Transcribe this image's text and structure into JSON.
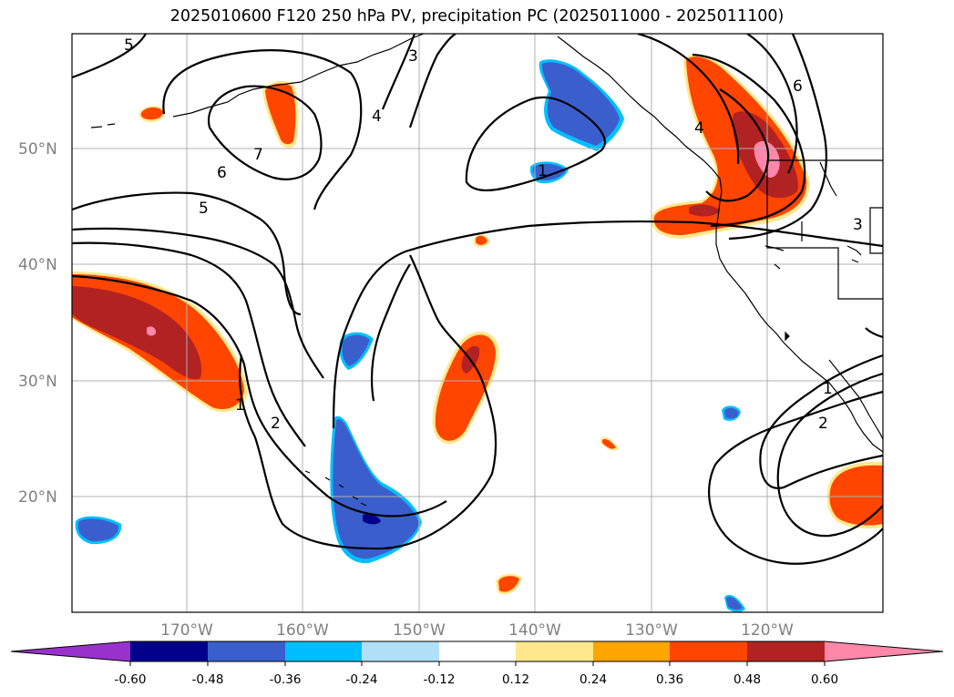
{
  "title": "2025010600 F120 250 hPa PV, precipitation PC (2025011000 - 2025011100)",
  "latitude_labels": [
    "50°N",
    "40°N",
    "30°N",
    "20°N"
  ],
  "longitude_labels": [
    "170°W",
    "160°W",
    "150°W",
    "140°W",
    "130°W",
    "120°W"
  ],
  "pv_contour_labels": [
    "5",
    "3",
    "4",
    "7",
    "6",
    "5",
    "1",
    "2",
    "1",
    "6",
    "4",
    "3",
    "1",
    "2"
  ],
  "colorbar": {
    "tick_labels": [
      "-0.60",
      "-0.48",
      "-0.36",
      "-0.24",
      "-0.12",
      "0.12",
      "0.24",
      "0.36",
      "0.48",
      "0.60"
    ],
    "colors": {
      "extend_min": "#9932cc",
      "lt_-0.48": "#00008b",
      "lt_-0.36": "#3a5fcd",
      "lt_-0.24": "#00bfff",
      "lt_-0.12": "#b0e0f8",
      "neutral": "#ffffff",
      "lt_0.24": "#ffe88c",
      "lt_0.36": "#ffa500",
      "lt_0.48": "#ff4500",
      "lt_0.60": "#b22222",
      "extend_max": "#ff88aa"
    }
  }
}
